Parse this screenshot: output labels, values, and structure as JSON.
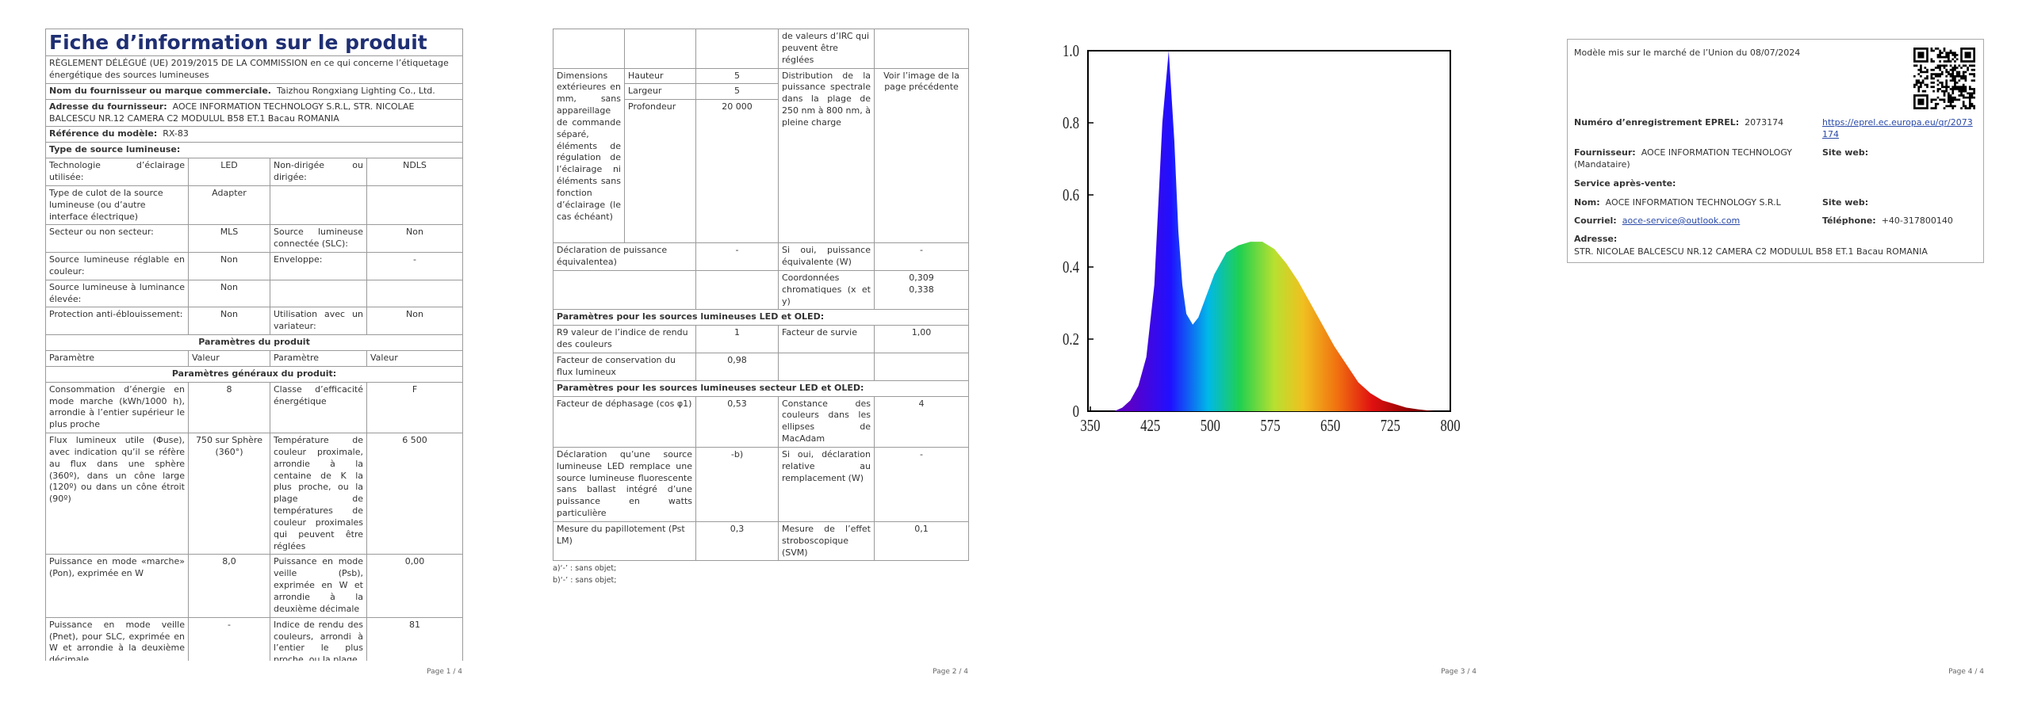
{
  "page1": {
    "title": "Fiche d’information sur le produit",
    "regulation": "RÈGLEMENT DÉLÉGUÉ (UE) 2019/2015 DE LA COMMISSION en ce qui concerne l’étiquetage énergétique des sources lumineuses",
    "supplier_label": "Nom du fournisseur ou marque commerciale.",
    "supplier": "Taizhou Rongxiang Lighting Co., Ltd.",
    "address_label": "Adresse du fournisseur:",
    "address": "AOCE INFORMATION TECHNOLOGY S.R.L, STR. NICOLAE BALCESCU NR.12 CAMERA C2 MODULUL B58 ET.1 Bacau ROMANIA",
    "model_label": "Référence du modèle:",
    "model": "RX-83",
    "source_type": "Type de source lumineuse:",
    "rows": [
      [
        "Technologie d’éclairage utilisée:",
        "LED",
        "Non-dirigée ou dirigée:",
        "NDLS"
      ],
      [
        "Type de culot de la source lumineuse (ou d’autre interface électrique)",
        "Adapter"
      ],
      [
        "Secteur ou non secteur:",
        "MLS",
        "Source lumineuse connectée (SLC):",
        "Non"
      ],
      [
        "Source lumineuse réglable en couleur:",
        "Non",
        "Enveloppe:",
        "-"
      ],
      [
        "Source lumineuse à luminance élevée:",
        "Non"
      ],
      [
        "Protection anti-éblouissement:",
        "Non",
        "Utilisation avec un variateur:",
        "Non"
      ]
    ],
    "product_params": "Paramètres du produit",
    "header": [
      "Paramètre",
      "Valeur",
      "Paramètre",
      "Valeur"
    ],
    "general_params": "Paramètres généraux du produit:",
    "general": [
      [
        "Consommation d’énergie en mode marche (kWh/1000 h), arrondie à l’entier supérieur le plus proche",
        "8",
        "Classe d’efficacité énergétique",
        "F"
      ],
      [
        "Flux lumineux utile (Φuse), avec indication qu’il se réfère au flux dans une sphère (360º), dans un cône large (120º) ou dans un cône étroit (90º)",
        "750 sur Sphère (360°)",
        "Température de couleur proximale, arrondie à la centaine de K la plus proche, ou la plage de températures de couleur proximales qui peuvent être réglées",
        "6 500"
      ],
      [
        "Puissance en mode «marche» (Pon), exprimée en W",
        "8,0",
        "Puissance en mode veille (Psb), exprimée en W et arrondie à la deuxième décimale",
        "0,00"
      ],
      [
        "Puissance en mode veille (Pnet), pour SLC, exprimée en W et arrondie à la deuxième décimale",
        "-",
        "Indice de rendu des couleurs, arrondi à l’entier le plus proche, ou la plage",
        "81"
      ]
    ],
    "page_number": "Page 1 / 4"
  },
  "page2": {
    "continuation": "de valeurs d’IRC qui peuvent être réglées",
    "dims": {
      "label": "Dimensions extérieures en mm, sans appareillage de commande séparé, éléments de régulation de l’éclairage ni éléments sans fonction d’éclairage (le cas échéant)",
      "height_label": "Hauteur",
      "height": "5",
      "width_label": "Largeur",
      "width": "5",
      "depth_label": "Profondeur",
      "depth": "20 000",
      "spd_label": "Distribution de la puissance spectrale dans la plage de 250 nm à 800 nm, à pleine charge",
      "spd": "Voir l’image de la page précédente"
    },
    "rows": [
      [
        "Déclaration de puissance équivalentea)",
        "-",
        "Si oui, puissance équivalente (W)",
        "-"
      ],
      [
        "Coordonnées chromatiques (x et y)",
        "0,309",
        "0,338"
      ]
    ],
    "led_title": "Paramètres pour les sources lumineuses LED et OLED:",
    "led_rows": [
      [
        "R9 valeur de l’indice de rendu des couleurs",
        "1",
        "Facteur de survie",
        "1,00"
      ],
      [
        "Facteur de conservation du flux lumineux",
        "0,98"
      ]
    ],
    "mains_title": "Paramètres pour les sources lumineuses secteur LED et OLED:",
    "mains_rows": [
      [
        "Facteur de déphasage (cos φ1)",
        "0,53",
        "Constance des couleurs dans les ellipses de MacAdam",
        "4"
      ],
      [
        "Déclaration qu’une source lumineuse LED remplace une source lumineuse fluorescente sans ballast intégré d’une puissance en watts particulière",
        "-b)",
        "Si oui, déclaration relative au remplacement (W)",
        "-"
      ],
      [
        "Mesure du papillotement (Pst LM)",
        "0,3",
        "Mesure de l’effet stroboscopique (SVM)",
        "0,1"
      ]
    ],
    "footnotes": [
      "a)‘-’ : sans objet;",
      "b)‘-’ : sans objet;"
    ],
    "page_number": "Page 2 / 4"
  },
  "page3": {
    "spectrum": {
      "type": "area",
      "x": [
        380,
        390,
        400,
        410,
        420,
        430,
        440,
        448,
        455,
        460,
        465,
        470,
        478,
        485,
        495,
        505,
        520,
        535,
        550,
        565,
        580,
        595,
        610,
        625,
        640,
        655,
        670,
        685,
        700,
        715,
        730,
        745,
        760,
        780
      ],
      "values": [
        0,
        0.01,
        0.03,
        0.07,
        0.15,
        0.35,
        0.8,
        1,
        0.75,
        0.5,
        0.35,
        0.27,
        0.24,
        0.26,
        0.32,
        0.38,
        0.44,
        0.46,
        0.47,
        0.47,
        0.45,
        0.41,
        0.36,
        0.3,
        0.24,
        0.18,
        0.13,
        0.08,
        0.05,
        0.03,
        0.02,
        0.01,
        0.005,
        0
      ],
      "xlim": [
        350,
        800
      ],
      "ylim": [
        0,
        1
      ],
      "xticks": [
        350,
        425,
        500,
        575,
        650,
        725,
        800
      ],
      "yticks": [
        0,
        0.2,
        0.4,
        0.6,
        0.8,
        {
          "value": 1,
          "label": "1.0"
        }
      ]
    },
    "page_number": "Page 3 / 4"
  },
  "page4": {
    "market": "Modèle mis sur le marché de l’Union du 08/07/2024",
    "eprel_label": "Numéro d’enregistrement EPREL:",
    "eprel": "2073174",
    "eprel_link": "https://eprel.ec.europa.eu/qr/2073174",
    "supplier_label": "Fournisseur:",
    "supplier": "AOCE INFORMATION TECHNOLOGY (Mandataire)",
    "website_label": "Site web:",
    "after_sales": "Service après-vente:",
    "name_label": "Nom:",
    "name": "AOCE INFORMATION TECHNOLOGY S.R.L",
    "website_label_2": "Site web:",
    "email_label": "Courriel:",
    "email": "aoce-service@outlook.com",
    "phone_label": "Téléphone:",
    "phone": "+40-317800140",
    "address_label": "Adresse:",
    "address": "STR. NICOLAE BALCESCU NR.12 CAMERA C2 MODULUL B58 ET.1 Bacau ROMANIA",
    "page_number": "Page 4 / 4"
  }
}
